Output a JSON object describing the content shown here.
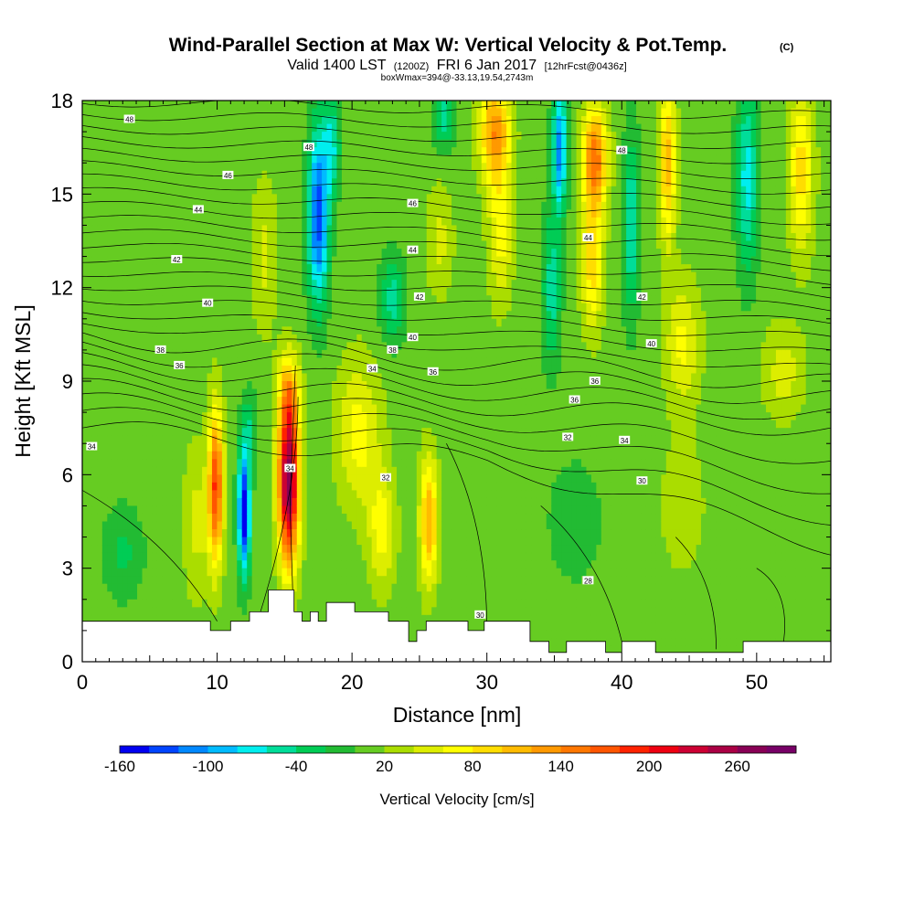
{
  "chart_data": {
    "type": "heatmap",
    "title": "Wind-Parallel Section at Max W: Vertical Velocity & Pot.Temp.",
    "title_mark": "(C)",
    "subtitle": {
      "prefix": "Valid 1400 LST",
      "utc": "(1200Z)",
      "date": "FRI 6 Jan 2017",
      "forecast": "[12hrFcst@0436z]"
    },
    "note": "boxWmax=394@-33.13,19.54,2743m",
    "xlabel": "Distance [nm]",
    "ylabel": "Height [Kft MSL]",
    "xlim": [
      0,
      55.5
    ],
    "ylim": [
      0,
      18
    ],
    "xticks": [
      0,
      10,
      20,
      30,
      40,
      50
    ],
    "yticks": [
      0,
      3,
      6,
      9,
      12,
      15,
      18
    ],
    "colorbar": {
      "title": "Vertical Velocity [cm/s]",
      "ticks": [
        -160,
        -100,
        -40,
        20,
        80,
        140,
        200,
        260
      ],
      "range": [
        -160,
        290
      ],
      "step": 20,
      "colors": [
        "#0000f0",
        "#0044ff",
        "#0088ff",
        "#00bbff",
        "#00eeee",
        "#00dd99",
        "#00cc55",
        "#22bb33",
        "#66cc22",
        "#aadd00",
        "#dded00",
        "#ffff00",
        "#ffdd00",
        "#ffbb00",
        "#ff9900",
        "#ff7700",
        "#ff5500",
        "#ff2200",
        "#ee0011",
        "#cc0033",
        "#aa0044",
        "#880055",
        "#770066"
      ]
    },
    "contour_labels": [
      "48",
      "46",
      "44",
      "42",
      "40",
      "38",
      "36",
      "34",
      "32",
      "30"
    ],
    "theta_labels": [
      {
        "x": 3.5,
        "y": 17.4,
        "t": "48"
      },
      {
        "x": 16.8,
        "y": 16.5,
        "t": "48"
      },
      {
        "x": 40.0,
        "y": 16.4,
        "t": "48"
      },
      {
        "x": 10.8,
        "y": 15.6,
        "t": "46"
      },
      {
        "x": 24.5,
        "y": 14.7,
        "t": "46"
      },
      {
        "x": 8.6,
        "y": 14.5,
        "t": "44"
      },
      {
        "x": 24.5,
        "y": 13.2,
        "t": "44"
      },
      {
        "x": 37.5,
        "y": 13.6,
        "t": "44"
      },
      {
        "x": 7.0,
        "y": 12.9,
        "t": "42"
      },
      {
        "x": 25.0,
        "y": 11.7,
        "t": "42"
      },
      {
        "x": 41.5,
        "y": 11.7,
        "t": "42"
      },
      {
        "x": 9.3,
        "y": 11.5,
        "t": "40"
      },
      {
        "x": 24.5,
        "y": 10.4,
        "t": "40"
      },
      {
        "x": 42.2,
        "y": 10.2,
        "t": "40"
      },
      {
        "x": 5.8,
        "y": 10.0,
        "t": "38"
      },
      {
        "x": 23.0,
        "y": 10.0,
        "t": "38"
      },
      {
        "x": 7.2,
        "y": 9.5,
        "t": "36"
      },
      {
        "x": 26.0,
        "y": 9.3,
        "t": "36"
      },
      {
        "x": 38.0,
        "y": 9.0,
        "t": "36"
      },
      {
        "x": 21.5,
        "y": 9.4,
        "t": "34"
      },
      {
        "x": 36.5,
        "y": 8.4,
        "t": "36"
      },
      {
        "x": 0.7,
        "y": 6.9,
        "t": "34"
      },
      {
        "x": 15.4,
        "y": 6.2,
        "t": "34"
      },
      {
        "x": 40.2,
        "y": 7.1,
        "t": "34"
      },
      {
        "x": 36.0,
        "y": 7.2,
        "t": "32"
      },
      {
        "x": 22.5,
        "y": 5.9,
        "t": "32"
      },
      {
        "x": 41.5,
        "y": 5.8,
        "t": "30"
      },
      {
        "x": 29.5,
        "y": 1.5,
        "t": "30"
      },
      {
        "x": 37.5,
        "y": 2.6,
        "t": "28"
      }
    ],
    "velocity_features": [
      {
        "x": 15.3,
        "y": 5.8,
        "sx": 0.75,
        "sy": 2.6,
        "v": 270
      },
      {
        "x": 15.3,
        "y": 8.6,
        "sx": 0.8,
        "sy": 1.2,
        "v": 70
      },
      {
        "x": 9.9,
        "y": 5.6,
        "sx": 0.55,
        "sy": 2.4,
        "v": 170
      },
      {
        "x": 12.0,
        "y": 4.8,
        "sx": 0.45,
        "sy": 2.0,
        "v": -170
      },
      {
        "x": 12.4,
        "y": 7.5,
        "sx": 0.6,
        "sy": 1.2,
        "v": -40
      },
      {
        "x": 17.5,
        "y": 14.3,
        "sx": 0.75,
        "sy": 2.8,
        "v": -145
      },
      {
        "x": 18.5,
        "y": 16.5,
        "sx": 0.6,
        "sy": 1.6,
        "v": -70
      },
      {
        "x": 23.0,
        "y": 11.6,
        "sx": 0.9,
        "sy": 1.4,
        "v": -60
      },
      {
        "x": 25.7,
        "y": 4.5,
        "sx": 0.65,
        "sy": 2.0,
        "v": 110
      },
      {
        "x": 22.2,
        "y": 4.2,
        "sx": 1.0,
        "sy": 1.8,
        "v": 60
      },
      {
        "x": 20.5,
        "y": 7.3,
        "sx": 1.6,
        "sy": 2.3,
        "v": 60
      },
      {
        "x": 30.6,
        "y": 17.0,
        "sx": 1.1,
        "sy": 1.6,
        "v": 125
      },
      {
        "x": 31.0,
        "y": 13.8,
        "sx": 0.9,
        "sy": 2.2,
        "v": 60
      },
      {
        "x": 35.4,
        "y": 16.5,
        "sx": 0.55,
        "sy": 2.0,
        "v": -120
      },
      {
        "x": 34.8,
        "y": 12.0,
        "sx": 0.7,
        "sy": 2.5,
        "v": -60
      },
      {
        "x": 38.0,
        "y": 16.1,
        "sx": 0.9,
        "sy": 1.7,
        "v": 145
      },
      {
        "x": 37.8,
        "y": 12.7,
        "sx": 0.8,
        "sy": 2.0,
        "v": 80
      },
      {
        "x": 40.7,
        "y": 14.0,
        "sx": 0.6,
        "sy": 3.0,
        "v": -70
      },
      {
        "x": 43.4,
        "y": 16.0,
        "sx": 0.6,
        "sy": 2.6,
        "v": 100
      },
      {
        "x": 44.5,
        "y": 10.2,
        "sx": 1.3,
        "sy": 2.0,
        "v": 55
      },
      {
        "x": 49.3,
        "y": 15.5,
        "sx": 0.8,
        "sy": 3.0,
        "v": -80
      },
      {
        "x": 53.3,
        "y": 15.8,
        "sx": 0.9,
        "sy": 2.6,
        "v": 80
      },
      {
        "x": 52.0,
        "y": 9.3,
        "sx": 1.5,
        "sy": 1.5,
        "v": 40
      },
      {
        "x": 26.8,
        "y": 17.5,
        "sx": 0.8,
        "sy": 1.0,
        "v": -60
      },
      {
        "x": 26.5,
        "y": 13.5,
        "sx": 1.0,
        "sy": 1.8,
        "v": 35
      },
      {
        "x": 13.5,
        "y": 13.0,
        "sx": 0.9,
        "sy": 2.5,
        "v": 35
      },
      {
        "x": 3.0,
        "y": 3.5,
        "sx": 1.5,
        "sy": 1.5,
        "v": -35
      },
      {
        "x": 8.5,
        "y": 4.5,
        "sx": 1.0,
        "sy": 2.5,
        "v": 35
      },
      {
        "x": 44.5,
        "y": 5.0,
        "sx": 1.5,
        "sy": 2.0,
        "v": 30
      },
      {
        "x": 36.5,
        "y": 4.5,
        "sx": 2.0,
        "sy": 2.0,
        "v": -25
      }
    ],
    "terrain": [
      [
        0,
        1.3
      ],
      [
        9.5,
        1.3
      ],
      [
        9.5,
        1.0
      ],
      [
        11,
        1.0
      ],
      [
        11,
        1.3
      ],
      [
        12.4,
        1.3
      ],
      [
        12.4,
        1.6
      ],
      [
        13.8,
        1.6
      ],
      [
        13.8,
        2.3
      ],
      [
        15.7,
        2.3
      ],
      [
        15.7,
        1.6
      ],
      [
        16.3,
        1.6
      ],
      [
        16.3,
        1.3
      ],
      [
        16.9,
        1.3
      ],
      [
        16.9,
        1.6
      ],
      [
        17.5,
        1.6
      ],
      [
        17.5,
        1.3
      ],
      [
        18.1,
        1.3
      ],
      [
        18.1,
        1.9
      ],
      [
        20.2,
        1.9
      ],
      [
        20.2,
        1.6
      ],
      [
        22.7,
        1.6
      ],
      [
        22.7,
        1.3
      ],
      [
        24.2,
        1.3
      ],
      [
        24.2,
        0.65
      ],
      [
        24.8,
        0.65
      ],
      [
        24.8,
        1.0
      ],
      [
        25.5,
        1.0
      ],
      [
        25.5,
        1.3
      ],
      [
        28.6,
        1.3
      ],
      [
        28.6,
        1.0
      ],
      [
        29.8,
        1.0
      ],
      [
        29.8,
        1.3
      ],
      [
        33.2,
        1.3
      ],
      [
        33.2,
        0.65
      ],
      [
        34.6,
        0.65
      ],
      [
        34.6,
        0.3
      ],
      [
        35.9,
        0.3
      ],
      [
        35.9,
        0.65
      ],
      [
        38.8,
        0.65
      ],
      [
        38.8,
        0.3
      ],
      [
        40.0,
        0.3
      ],
      [
        40.0,
        0.65
      ],
      [
        42.5,
        0.65
      ],
      [
        42.5,
        0.3
      ],
      [
        49.0,
        0.3
      ],
      [
        49.0,
        0.65
      ],
      [
        55.5,
        0.65
      ]
    ]
  }
}
